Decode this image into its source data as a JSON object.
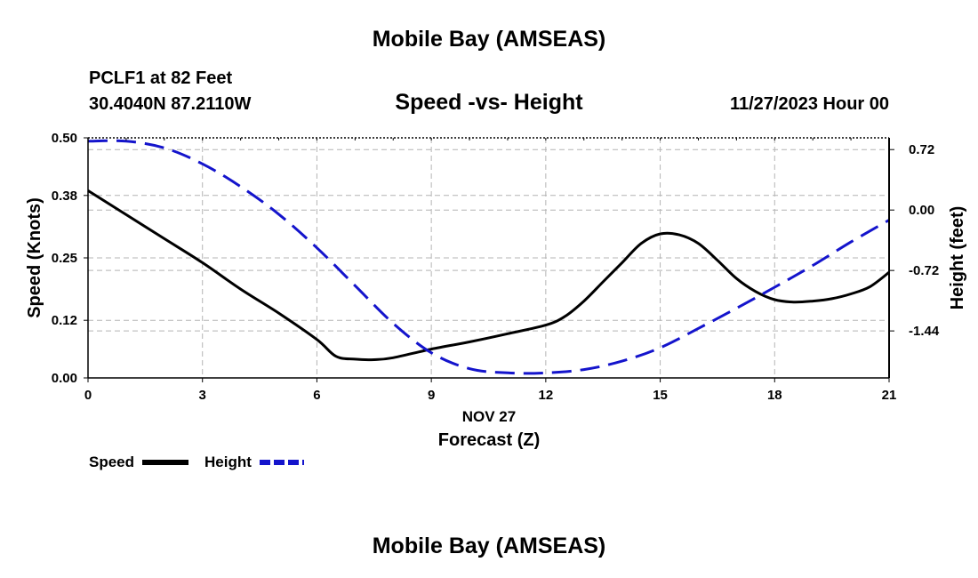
{
  "page": {
    "title_top": "Mobile Bay (AMSEAS)",
    "title_bottom": "Mobile Bay (AMSEAS)",
    "station_line": "PCLF1 at 82 Feet",
    "coords_line": "30.4040N  87.2110W",
    "chart_title": "Speed -vs- Height",
    "date_line": "11/27/2023 Hour 00"
  },
  "chart_data": {
    "type": "line",
    "title": "Speed -vs- Height",
    "xlabel": "Forecast (Z)",
    "xlabel_date": "NOV 27",
    "ylabel": "Speed (Knots)",
    "y2label": "Height (feet)",
    "xlim": [
      0,
      21
    ],
    "ylim": [
      0,
      0.5
    ],
    "y2lim": [
      -2.0,
      0.86
    ],
    "grid": true,
    "x_ticks": [
      "0",
      "3",
      "6",
      "9",
      "12",
      "15",
      "18",
      "21"
    ],
    "y_ticks": [
      "0.00",
      "0.12",
      "0.25",
      "0.38",
      "0.50"
    ],
    "y2_ticks": [
      "0.72",
      "0.00",
      "-0.72",
      "-1.44"
    ],
    "legend_position": "bottom-left",
    "colors": {
      "speed": "#000000",
      "height": "#1414cc",
      "grid": "#b4b4b4"
    },
    "series": [
      {
        "name": "Speed",
        "axis": "left",
        "style": "solid",
        "x": [
          0,
          1,
          2,
          3,
          4,
          5,
          6,
          6.5,
          7,
          7.5,
          8,
          9,
          10,
          11,
          12,
          12.5,
          13,
          13.5,
          14,
          14.5,
          15,
          15.5,
          16,
          16.5,
          17,
          17.5,
          18,
          18.5,
          19,
          19.5,
          20,
          20.5,
          21
        ],
        "values": [
          0.39,
          0.34,
          0.29,
          0.24,
          0.185,
          0.135,
          0.08,
          0.045,
          0.039,
          0.038,
          0.042,
          0.06,
          0.075,
          0.092,
          0.11,
          0.128,
          0.16,
          0.2,
          0.24,
          0.28,
          0.3,
          0.298,
          0.28,
          0.245,
          0.207,
          0.18,
          0.163,
          0.158,
          0.16,
          0.165,
          0.175,
          0.19,
          0.22
        ]
      },
      {
        "name": "Height",
        "axis": "right",
        "style": "dashed",
        "x": [
          0,
          1,
          2,
          3,
          4,
          5,
          6,
          7,
          8,
          9,
          10,
          11,
          12,
          13,
          14,
          15,
          16,
          17,
          18,
          19,
          20,
          21
        ],
        "values": [
          0.82,
          0.82,
          0.74,
          0.55,
          0.28,
          -0.05,
          -0.45,
          -0.9,
          -1.35,
          -1.7,
          -1.89,
          -1.94,
          -1.94,
          -1.9,
          -1.8,
          -1.64,
          -1.41,
          -1.17,
          -0.92,
          -0.66,
          -0.38,
          -0.12
        ]
      }
    ]
  }
}
